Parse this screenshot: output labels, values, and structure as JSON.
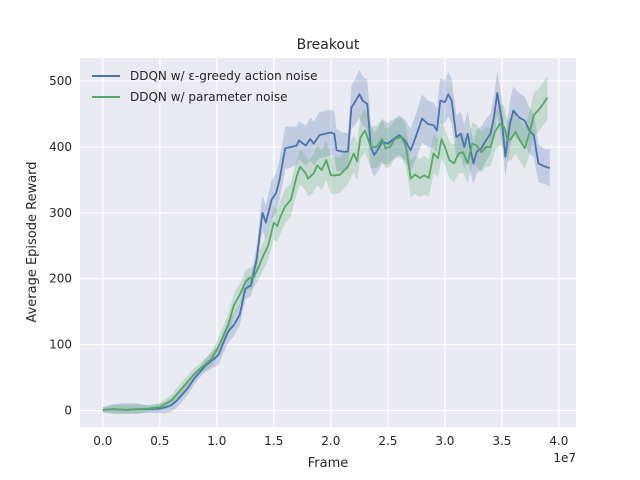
{
  "chart_data": {
    "type": "line",
    "title": "Breakout",
    "xlabel": "Frame",
    "ylabel": "Average Episode Reward",
    "x_offset_label": "1e7",
    "xlim": [
      -0.2,
      4.15
    ],
    "ylim": [
      -25,
      535
    ],
    "x_ticks": [
      0.0,
      0.5,
      1.0,
      1.5,
      2.0,
      2.5,
      3.0,
      3.5,
      4.0
    ],
    "x_tick_labels": [
      "0.0",
      "0.5",
      "1.0",
      "1.5",
      "2.0",
      "2.5",
      "3.0",
      "3.5",
      "4.0"
    ],
    "y_ticks": [
      0,
      100,
      200,
      300,
      400,
      500
    ],
    "y_tick_labels": [
      "0",
      "100",
      "200",
      "300",
      "400",
      "500"
    ],
    "grid": true,
    "legend_position": "top-left",
    "background": "#eaeaf2",
    "series": [
      {
        "name": "DDQN w/ ε-greedy action noise",
        "color": "#4c72b0",
        "points": [
          [
            0.0,
            1
          ],
          [
            0.1,
            2
          ],
          [
            0.2,
            1
          ],
          [
            0.3,
            2
          ],
          [
            0.4,
            2
          ],
          [
            0.5,
            3
          ],
          [
            0.55,
            5
          ],
          [
            0.6,
            8
          ],
          [
            0.65,
            15
          ],
          [
            0.7,
            25
          ],
          [
            0.75,
            35
          ],
          [
            0.8,
            48
          ],
          [
            0.85,
            58
          ],
          [
            0.9,
            68
          ],
          [
            0.95,
            75
          ],
          [
            1.0,
            82
          ],
          [
            1.02,
            86
          ],
          [
            1.05,
            100
          ],
          [
            1.1,
            120
          ],
          [
            1.15,
            130
          ],
          [
            1.2,
            145
          ],
          [
            1.22,
            160
          ],
          [
            1.25,
            185
          ],
          [
            1.3,
            190
          ],
          [
            1.35,
            230
          ],
          [
            1.4,
            300
          ],
          [
            1.43,
            285
          ],
          [
            1.48,
            320
          ],
          [
            1.52,
            330
          ],
          [
            1.55,
            350
          ],
          [
            1.58,
            380
          ],
          [
            1.6,
            398
          ],
          [
            1.65,
            400
          ],
          [
            1.7,
            402
          ],
          [
            1.72,
            410
          ],
          [
            1.78,
            402
          ],
          [
            1.82,
            412
          ],
          [
            1.85,
            405
          ],
          [
            1.9,
            418
          ],
          [
            1.95,
            420
          ],
          [
            2.0,
            422
          ],
          [
            2.03,
            420
          ],
          [
            2.05,
            395
          ],
          [
            2.1,
            393
          ],
          [
            2.15,
            393
          ],
          [
            2.18,
            460
          ],
          [
            2.2,
            465
          ],
          [
            2.25,
            480
          ],
          [
            2.28,
            470
          ],
          [
            2.32,
            465
          ],
          [
            2.35,
            400
          ],
          [
            2.38,
            388
          ],
          [
            2.42,
            398
          ],
          [
            2.45,
            408
          ],
          [
            2.5,
            405
          ],
          [
            2.55,
            412
          ],
          [
            2.6,
            418
          ],
          [
            2.65,
            410
          ],
          [
            2.7,
            395
          ],
          [
            2.75,
            418
          ],
          [
            2.8,
            443
          ],
          [
            2.85,
            435
          ],
          [
            2.9,
            433
          ],
          [
            2.93,
            425
          ],
          [
            2.96,
            470
          ],
          [
            3.0,
            468
          ],
          [
            3.03,
            480
          ],
          [
            3.06,
            470
          ],
          [
            3.1,
            415
          ],
          [
            3.14,
            420
          ],
          [
            3.17,
            400
          ],
          [
            3.2,
            420
          ],
          [
            3.22,
            400
          ],
          [
            3.25,
            375
          ],
          [
            3.28,
            393
          ],
          [
            3.32,
            398
          ],
          [
            3.36,
            410
          ],
          [
            3.4,
            420
          ],
          [
            3.43,
            445
          ],
          [
            3.46,
            482
          ],
          [
            3.5,
            440
          ],
          [
            3.53,
            385
          ],
          [
            3.57,
            435
          ],
          [
            3.6,
            455
          ],
          [
            3.65,
            445
          ],
          [
            3.7,
            440
          ],
          [
            3.74,
            425
          ],
          [
            3.78,
            418
          ],
          [
            3.82,
            375
          ],
          [
            3.88,
            370
          ],
          [
            3.92,
            368
          ]
        ]
      },
      {
        "name": "DDQN w/ parameter noise",
        "color": "#55a868",
        "points": [
          [
            0.0,
            1
          ],
          [
            0.1,
            2
          ],
          [
            0.2,
            1
          ],
          [
            0.3,
            2
          ],
          [
            0.4,
            3
          ],
          [
            0.5,
            5
          ],
          [
            0.55,
            10
          ],
          [
            0.6,
            15
          ],
          [
            0.65,
            25
          ],
          [
            0.7,
            35
          ],
          [
            0.75,
            45
          ],
          [
            0.8,
            55
          ],
          [
            0.85,
            63
          ],
          [
            0.9,
            70
          ],
          [
            0.95,
            78
          ],
          [
            1.0,
            92
          ],
          [
            1.05,
            110
          ],
          [
            1.1,
            130
          ],
          [
            1.15,
            160
          ],
          [
            1.2,
            175
          ],
          [
            1.25,
            195
          ],
          [
            1.28,
            200
          ],
          [
            1.32,
            202
          ],
          [
            1.36,
            215
          ],
          [
            1.4,
            232
          ],
          [
            1.45,
            250
          ],
          [
            1.5,
            285
          ],
          [
            1.53,
            280
          ],
          [
            1.56,
            295
          ],
          [
            1.6,
            310
          ],
          [
            1.65,
            320
          ],
          [
            1.7,
            355
          ],
          [
            1.73,
            370
          ],
          [
            1.78,
            360
          ],
          [
            1.8,
            352
          ],
          [
            1.85,
            360
          ],
          [
            1.88,
            372
          ],
          [
            1.92,
            365
          ],
          [
            1.96,
            380
          ],
          [
            2.0,
            357
          ],
          [
            2.05,
            357
          ],
          [
            2.08,
            358
          ],
          [
            2.12,
            365
          ],
          [
            2.15,
            370
          ],
          [
            2.2,
            390
          ],
          [
            2.23,
            378
          ],
          [
            2.26,
            415
          ],
          [
            2.3,
            425
          ],
          [
            2.35,
            400
          ],
          [
            2.4,
            400
          ],
          [
            2.45,
            412
          ],
          [
            2.48,
            398
          ],
          [
            2.52,
            400
          ],
          [
            2.56,
            412
          ],
          [
            2.62,
            415
          ],
          [
            2.66,
            400
          ],
          [
            2.7,
            352
          ],
          [
            2.74,
            358
          ],
          [
            2.78,
            353
          ],
          [
            2.82,
            357
          ],
          [
            2.86,
            353
          ],
          [
            2.9,
            390
          ],
          [
            2.94,
            383
          ],
          [
            2.97,
            412
          ],
          [
            3.0,
            400
          ],
          [
            3.04,
            380
          ],
          [
            3.08,
            375
          ],
          [
            3.12,
            390
          ],
          [
            3.16,
            392
          ],
          [
            3.2,
            375
          ],
          [
            3.24,
            405
          ],
          [
            3.28,
            402
          ],
          [
            3.32,
            392
          ],
          [
            3.36,
            400
          ],
          [
            3.4,
            400
          ],
          [
            3.44,
            423
          ],
          [
            3.48,
            435
          ],
          [
            3.52,
            430
          ],
          [
            3.55,
            410
          ],
          [
            3.58,
            412
          ],
          [
            3.62,
            423
          ],
          [
            3.66,
            410
          ],
          [
            3.7,
            398
          ],
          [
            3.74,
            420
          ],
          [
            3.78,
            448
          ],
          [
            3.84,
            460
          ],
          [
            3.9,
            475
          ]
        ]
      }
    ]
  }
}
